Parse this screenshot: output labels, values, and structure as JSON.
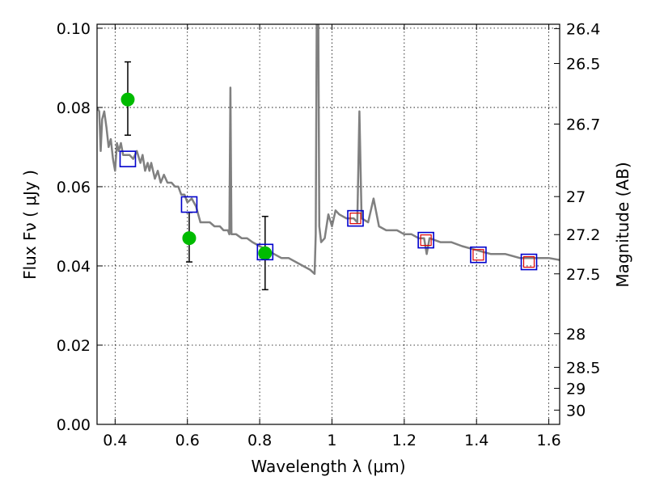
{
  "chart_data": {
    "type": "scatter",
    "xlabel": "Wavelength  λ (μm)",
    "ylabel": "Flux  Fν  ( μJy )",
    "y2label": "Magnitude (AB)",
    "xlim": [
      0.35,
      1.63
    ],
    "ylim": [
      0.0,
      0.101
    ],
    "grid": true,
    "x_ticks": [
      {
        "value": 0.4,
        "label": "0.4"
      },
      {
        "value": 0.6,
        "label": "0.6"
      },
      {
        "value": 0.8,
        "label": "0.8"
      },
      {
        "value": 1.0,
        "label": "1"
      },
      {
        "value": 1.2,
        "label": "1.2"
      },
      {
        "value": 1.4,
        "label": "1.4"
      },
      {
        "value": 1.6,
        "label": "1.6"
      }
    ],
    "y_ticks": [
      {
        "value": 0.0,
        "label": "0.00"
      },
      {
        "value": 0.02,
        "label": "0.02"
      },
      {
        "value": 0.04,
        "label": "0.04"
      },
      {
        "value": 0.06,
        "label": "0.06"
      },
      {
        "value": 0.08,
        "label": "0.08"
      },
      {
        "value": 0.1,
        "label": "0.10"
      }
    ],
    "mag_ticks": [
      {
        "flux": 0.0999,
        "label": "26.4"
      },
      {
        "flux": 0.0911,
        "label": "26.5"
      },
      {
        "flux": 0.0758,
        "label": "26.7"
      },
      {
        "flux": 0.0575,
        "label": "27"
      },
      {
        "flux": 0.0479,
        "label": "27.2"
      },
      {
        "flux": 0.038,
        "label": "27.5"
      },
      {
        "flux": 0.0229,
        "label": "28"
      },
      {
        "flux": 0.0144,
        "label": "28.5"
      },
      {
        "flux": 0.0091,
        "label": "29"
      },
      {
        "flux": 0.0036,
        "label": "30"
      }
    ],
    "series": [
      {
        "kind": "line",
        "color": "#808080",
        "points": [
          [
            0.35,
            0.08
          ],
          [
            0.356,
            0.079
          ],
          [
            0.36,
            0.069
          ],
          [
            0.364,
            0.077
          ],
          [
            0.37,
            0.079
          ],
          [
            0.376,
            0.075
          ],
          [
            0.382,
            0.07
          ],
          [
            0.388,
            0.072
          ],
          [
            0.394,
            0.067
          ],
          [
            0.4,
            0.064
          ],
          [
            0.405,
            0.071
          ],
          [
            0.41,
            0.069
          ],
          [
            0.416,
            0.071
          ],
          [
            0.422,
            0.068
          ],
          [
            0.43,
            0.068
          ],
          [
            0.44,
            0.068
          ],
          [
            0.45,
            0.067
          ],
          [
            0.46,
            0.069
          ],
          [
            0.47,
            0.066
          ],
          [
            0.476,
            0.068
          ],
          [
            0.483,
            0.064
          ],
          [
            0.49,
            0.066
          ],
          [
            0.495,
            0.064
          ],
          [
            0.5,
            0.066
          ],
          [
            0.51,
            0.062
          ],
          [
            0.518,
            0.064
          ],
          [
            0.526,
            0.061
          ],
          [
            0.535,
            0.063
          ],
          [
            0.545,
            0.061
          ],
          [
            0.556,
            0.061
          ],
          [
            0.566,
            0.06
          ],
          [
            0.575,
            0.06
          ],
          [
            0.583,
            0.058
          ],
          [
            0.592,
            0.058
          ],
          [
            0.6,
            0.056
          ],
          [
            0.612,
            0.057
          ],
          [
            0.624,
            0.055
          ],
          [
            0.636,
            0.051
          ],
          [
            0.65,
            0.051
          ],
          [
            0.662,
            0.051
          ],
          [
            0.675,
            0.05
          ],
          [
            0.69,
            0.05
          ],
          [
            0.7,
            0.049
          ],
          [
            0.712,
            0.049
          ],
          [
            0.716,
            0.048
          ],
          [
            0.719,
            0.085
          ],
          [
            0.722,
            0.048
          ],
          [
            0.735,
            0.048
          ],
          [
            0.75,
            0.047
          ],
          [
            0.765,
            0.047
          ],
          [
            0.78,
            0.046
          ],
          [
            0.8,
            0.045
          ],
          [
            0.82,
            0.044
          ],
          [
            0.84,
            0.043
          ],
          [
            0.86,
            0.042
          ],
          [
            0.88,
            0.042
          ],
          [
            0.9,
            0.041
          ],
          [
            0.92,
            0.04
          ],
          [
            0.94,
            0.039
          ],
          [
            0.952,
            0.038
          ],
          [
            0.955,
            0.048
          ],
          [
            0.958,
            0.106
          ],
          [
            0.962,
            0.106
          ],
          [
            0.965,
            0.05
          ],
          [
            0.97,
            0.046
          ],
          [
            0.98,
            0.047
          ],
          [
            0.99,
            0.053
          ],
          [
            1.0,
            0.05
          ],
          [
            1.01,
            0.054
          ],
          [
            1.02,
            0.053
          ],
          [
            1.04,
            0.052
          ],
          [
            1.06,
            0.052
          ],
          [
            1.07,
            0.051
          ],
          [
            1.076,
            0.079
          ],
          [
            1.082,
            0.052
          ],
          [
            1.1,
            0.051
          ],
          [
            1.115,
            0.057
          ],
          [
            1.13,
            0.05
          ],
          [
            1.15,
            0.049
          ],
          [
            1.18,
            0.049
          ],
          [
            1.2,
            0.048
          ],
          [
            1.22,
            0.048
          ],
          [
            1.24,
            0.047
          ],
          [
            1.255,
            0.047
          ],
          [
            1.262,
            0.043
          ],
          [
            1.27,
            0.047
          ],
          [
            1.3,
            0.046
          ],
          [
            1.33,
            0.046
          ],
          [
            1.36,
            0.045
          ],
          [
            1.4,
            0.044
          ],
          [
            1.44,
            0.043
          ],
          [
            1.48,
            0.043
          ],
          [
            1.52,
            0.042
          ],
          [
            1.56,
            0.042
          ],
          [
            1.6,
            0.042
          ],
          [
            1.63,
            0.0415
          ]
        ]
      },
      {
        "kind": "points",
        "marker": "circle",
        "color": "#00bb00",
        "points": [
          {
            "x": 0.435,
            "y": 0.082,
            "err": [
              0.073,
              0.0915
            ]
          },
          {
            "x": 0.605,
            "y": 0.047,
            "err": [
              0.041,
              0.0535
            ]
          },
          {
            "x": 0.815,
            "y": 0.0432,
            "err": [
              0.034,
              0.0525
            ]
          }
        ]
      },
      {
        "kind": "points",
        "marker": "square",
        "color": "#0000cc",
        "points": [
          {
            "x": 0.435,
            "y": 0.067
          },
          {
            "x": 0.605,
            "y": 0.0555
          },
          {
            "x": 0.815,
            "y": 0.0435
          },
          {
            "x": 1.065,
            "y": 0.052
          },
          {
            "x": 1.26,
            "y": 0.0465
          },
          {
            "x": 1.405,
            "y": 0.0428
          },
          {
            "x": 1.545,
            "y": 0.041
          }
        ]
      },
      {
        "kind": "points",
        "marker": "square-small",
        "color": "#dd0000",
        "points": [
          {
            "x": 1.065,
            "y": 0.052
          },
          {
            "x": 1.26,
            "y": 0.0465
          },
          {
            "x": 1.405,
            "y": 0.0428
          },
          {
            "x": 1.545,
            "y": 0.041
          }
        ]
      }
    ]
  }
}
